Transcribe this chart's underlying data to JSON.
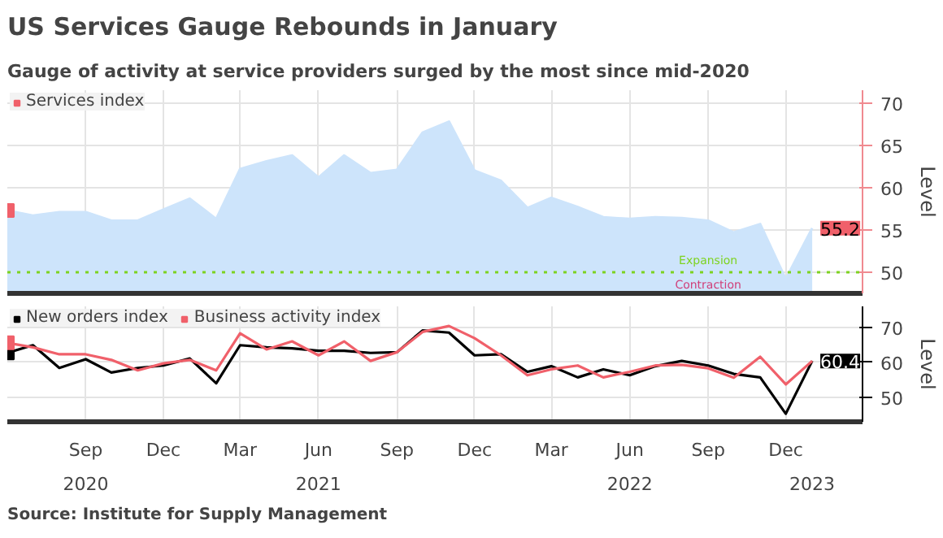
{
  "chart_data": [
    {
      "type": "area",
      "title": "US Services Gauge Rebounds in January",
      "subtitle": "Gauge of activity at service providers surged by the most since mid-2020",
      "ylabel": "Level",
      "x": [
        "2020-06",
        "2020-07",
        "2020-08",
        "2020-09",
        "2020-10",
        "2020-11",
        "2020-12",
        "2021-01",
        "2021-02",
        "2021-03",
        "2021-04",
        "2021-05",
        "2021-06",
        "2021-07",
        "2021-08",
        "2021-09",
        "2021-10",
        "2021-11",
        "2021-12",
        "2022-01",
        "2022-02",
        "2022-03",
        "2022-04",
        "2022-05",
        "2022-06",
        "2022-07",
        "2022-08",
        "2022-09",
        "2022-10",
        "2022-11",
        "2022-12",
        "2023-01"
      ],
      "series": [
        {
          "name": "Services index",
          "color": "#cde4fb",
          "values": [
            57.3,
            56.7,
            57.1,
            57.1,
            56.1,
            56.1,
            57.4,
            58.7,
            56.3,
            62.2,
            63.1,
            63.8,
            61.2,
            63.8,
            61.7,
            62.1,
            66.5,
            67.8,
            62.0,
            60.8,
            57.6,
            58.8,
            57.7,
            56.5,
            56.3,
            56.5,
            56.4,
            56.1,
            54.7,
            55.7,
            49.2,
            55.2
          ],
          "value_labels": [
            null,
            null,
            null,
            null,
            null,
            null,
            null,
            null,
            null,
            null,
            null,
            null,
            null,
            null,
            null,
            null,
            null,
            null,
            null,
            null,
            null,
            null,
            null,
            null,
            null,
            null,
            null,
            null,
            null,
            null,
            null,
            "55.2"
          ]
        }
      ],
      "xlim": [
        "2020-06",
        "2023-03"
      ],
      "xticks": [
        {
          "value": "2020-09",
          "label": null
        },
        {
          "value": "2020-12",
          "label": null
        },
        {
          "value": "2021-03",
          "label": null
        },
        {
          "value": "2021-06",
          "label": null
        },
        {
          "value": "2021-09",
          "label": null
        },
        {
          "value": "2021-12",
          "label": null
        },
        {
          "value": "2022-03",
          "label": null
        },
        {
          "value": "2022-06",
          "label": null
        },
        {
          "value": "2022-09",
          "label": null
        },
        {
          "value": "2022-12",
          "label": null
        }
      ],
      "ylim": [
        47.5,
        71.5
      ],
      "yticks": [
        50,
        55,
        60,
        65,
        70
      ],
      "tick_labels": "y",
      "grid": true,
      "legend": "top left",
      "ref_lines": [
        {
          "axis": "y",
          "value": 50,
          "color": "#7ed321",
          "line_style": "dotted"
        }
      ],
      "annotations": [
        {
          "text": "Expansion",
          "x": "2022-09",
          "y": 50
        },
        {
          "text": "Contraction",
          "x": "2022-09",
          "y": 50
        }
      ]
    },
    {
      "type": "line",
      "ylabel": "Level",
      "x": [
        "2020-06",
        "2020-07",
        "2020-08",
        "2020-09",
        "2020-10",
        "2020-11",
        "2020-12",
        "2021-01",
        "2021-02",
        "2021-03",
        "2021-04",
        "2021-05",
        "2021-06",
        "2021-07",
        "2021-08",
        "2021-09",
        "2021-10",
        "2021-11",
        "2021-12",
        "2022-01",
        "2022-02",
        "2022-03",
        "2022-04",
        "2022-05",
        "2022-06",
        "2022-07",
        "2022-08",
        "2022-09",
        "2022-10",
        "2022-11",
        "2022-12",
        "2023-01"
      ],
      "series": [
        {
          "name": "New orders index",
          "color": "#000000",
          "values": [
            62.7,
            64.9,
            58.4,
            60.9,
            57.1,
            58.4,
            59.1,
            61.1,
            54.0,
            64.9,
            64.3,
            64.0,
            63.3,
            63.3,
            62.7,
            62.9,
            69.1,
            68.5,
            62.0,
            62.3,
            57.3,
            58.9,
            55.7,
            58.0,
            56.3,
            58.9,
            60.4,
            59.1,
            56.7,
            55.7,
            45.3,
            60.4
          ],
          "value_labels": [
            null,
            null,
            null,
            null,
            null,
            null,
            null,
            null,
            null,
            null,
            null,
            null,
            null,
            null,
            null,
            null,
            null,
            null,
            null,
            null,
            null,
            null,
            null,
            null,
            null,
            null,
            null,
            null,
            null,
            null,
            null,
            "60.4"
          ]
        },
        {
          "name": "Business activity index",
          "color": "#f0606a",
          "values": [
            65.6,
            64.3,
            62.3,
            62.3,
            60.7,
            57.7,
            59.7,
            60.7,
            57.7,
            68.3,
            63.7,
            66.0,
            62.0,
            66.0,
            60.4,
            62.9,
            68.7,
            70.4,
            66.9,
            62.0,
            56.3,
            58.0,
            59.1,
            55.7,
            57.3,
            59.1,
            59.3,
            58.3,
            55.6,
            61.6,
            53.7,
            60.4
          ]
        }
      ],
      "xlim": [
        "2020-06",
        "2023-03"
      ],
      "xticks": [
        {
          "value": "2020-09",
          "label": "Sep"
        },
        {
          "value": "2020-12",
          "label": "Dec"
        },
        {
          "value": "2021-03",
          "label": "Mar"
        },
        {
          "value": "2021-06",
          "label": "Jun"
        },
        {
          "value": "2021-09",
          "label": "Sep"
        },
        {
          "value": "2021-12",
          "label": "Dec"
        },
        {
          "value": "2022-03",
          "label": "Mar"
        },
        {
          "value": "2022-06",
          "label": "Jun"
        },
        {
          "value": "2022-09",
          "label": "Sep"
        },
        {
          "value": "2022-12",
          "label": "Dec"
        }
      ],
      "x2lim": [
        "2020-06",
        "2023-03"
      ],
      "x2ticks": [
        {
          "value": "2020-09",
          "label": "2020"
        },
        {
          "value": "2021-06",
          "label": "2021"
        },
        {
          "value": "2022-06",
          "label": "2022"
        },
        {
          "value": "2023-01",
          "label": "2023"
        }
      ],
      "ylim": [
        43,
        76
      ],
      "yticks": [
        50,
        60,
        70
      ],
      "grid": true,
      "legend": "top left",
      "annotations": [
        "Source: Institute for Supply Management"
      ]
    }
  ]
}
